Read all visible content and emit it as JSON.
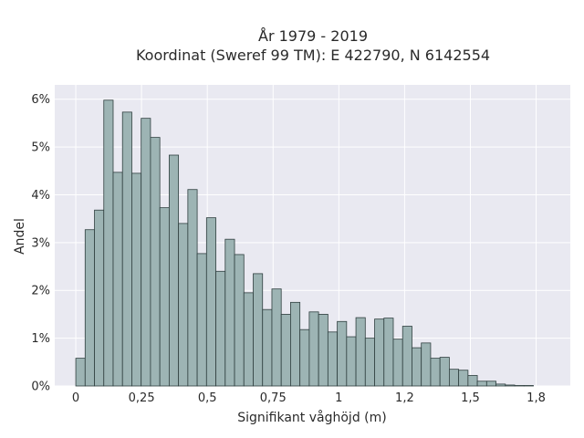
{
  "chart_data": {
    "type": "bar",
    "title": "År 1979 - 2019",
    "subtitle": "Koordinat (Sweref 99 TM): E 422790, N 6142554",
    "xlabel": "Signifikant våghöjd (m)",
    "ylabel": "Andel",
    "xlim": [
      -0.08,
      1.88
    ],
    "ylim": [
      0,
      6.3
    ],
    "bin_width": 0.0355,
    "bin_start": 0,
    "x_ticks": [
      0,
      0.25,
      0.5,
      0.75,
      1,
      1.25,
      1.5,
      1.75
    ],
    "x_tick_labels": [
      "0",
      "0,25",
      "0,5",
      "0,75",
      "1",
      "1,2",
      "1,5",
      "1,8"
    ],
    "y_ticks": [
      0,
      1,
      2,
      3,
      4,
      5,
      6
    ],
    "y_tick_labels": [
      "0%",
      "1%",
      "2%",
      "3%",
      "4%",
      "5%",
      "6%"
    ],
    "values": [
      0.58,
      3.27,
      3.68,
      5.98,
      4.47,
      5.73,
      4.45,
      5.6,
      5.2,
      3.73,
      4.83,
      3.4,
      4.11,
      2.77,
      3.52,
      2.4,
      3.07,
      2.75,
      1.95,
      2.35,
      1.6,
      2.03,
      1.5,
      1.75,
      1.18,
      1.55,
      1.5,
      1.13,
      1.35,
      1.03,
      1.43,
      1.0,
      1.4,
      1.42,
      0.98,
      1.25,
      0.8,
      0.9,
      0.58,
      0.6,
      0.35,
      0.33,
      0.22,
      0.1,
      0.1,
      0.04,
      0.02,
      0.01,
      0.01
    ],
    "grid": true,
    "background": "#e9e9f1",
    "bar_color": "#9db4b4",
    "bar_edge_color": "#2f3f3f"
  }
}
